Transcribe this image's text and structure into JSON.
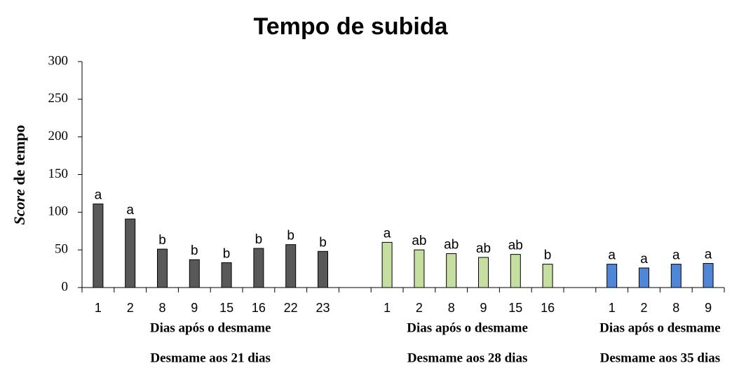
{
  "chart_data": {
    "type": "bar",
    "title": "Tempo de subida",
    "ylabel_italic": "Score",
    "ylabel": "de tempo",
    "ylim": [
      0,
      300
    ],
    "yticks": [
      0,
      50,
      100,
      150,
      200,
      250,
      300
    ],
    "groups": [
      {
        "categories": [
          "1",
          "2",
          "8",
          "9",
          "15",
          "16",
          "22",
          "23"
        ],
        "values": [
          111,
          91,
          51,
          37,
          33,
          52,
          57,
          48
        ],
        "letters": [
          "a",
          "a",
          "b",
          "b",
          "b",
          "b",
          "b",
          "b"
        ],
        "color": "#595959",
        "xlabel": "Dias após o desmame",
        "label": "Desmame aos 21 dias"
      },
      {
        "categories": [
          "1",
          "2",
          "8",
          "9",
          "15",
          "16"
        ],
        "values": [
          60,
          50,
          45,
          40,
          44,
          31
        ],
        "letters": [
          "a",
          "ab",
          "ab",
          "ab",
          "ab",
          "b"
        ],
        "color": "#c6dea0",
        "xlabel": "Dias após o desmame",
        "label": "Desmame aos 28 dias"
      },
      {
        "categories": [
          "1",
          "2",
          "8",
          "9"
        ],
        "values": [
          31,
          26,
          31,
          32
        ],
        "letters": [
          "a",
          "a",
          "a",
          "a"
        ],
        "color": "#4f86d6",
        "xlabel": "Dias após o desmame",
        "label": "Desmame aos 35 dias"
      }
    ]
  }
}
